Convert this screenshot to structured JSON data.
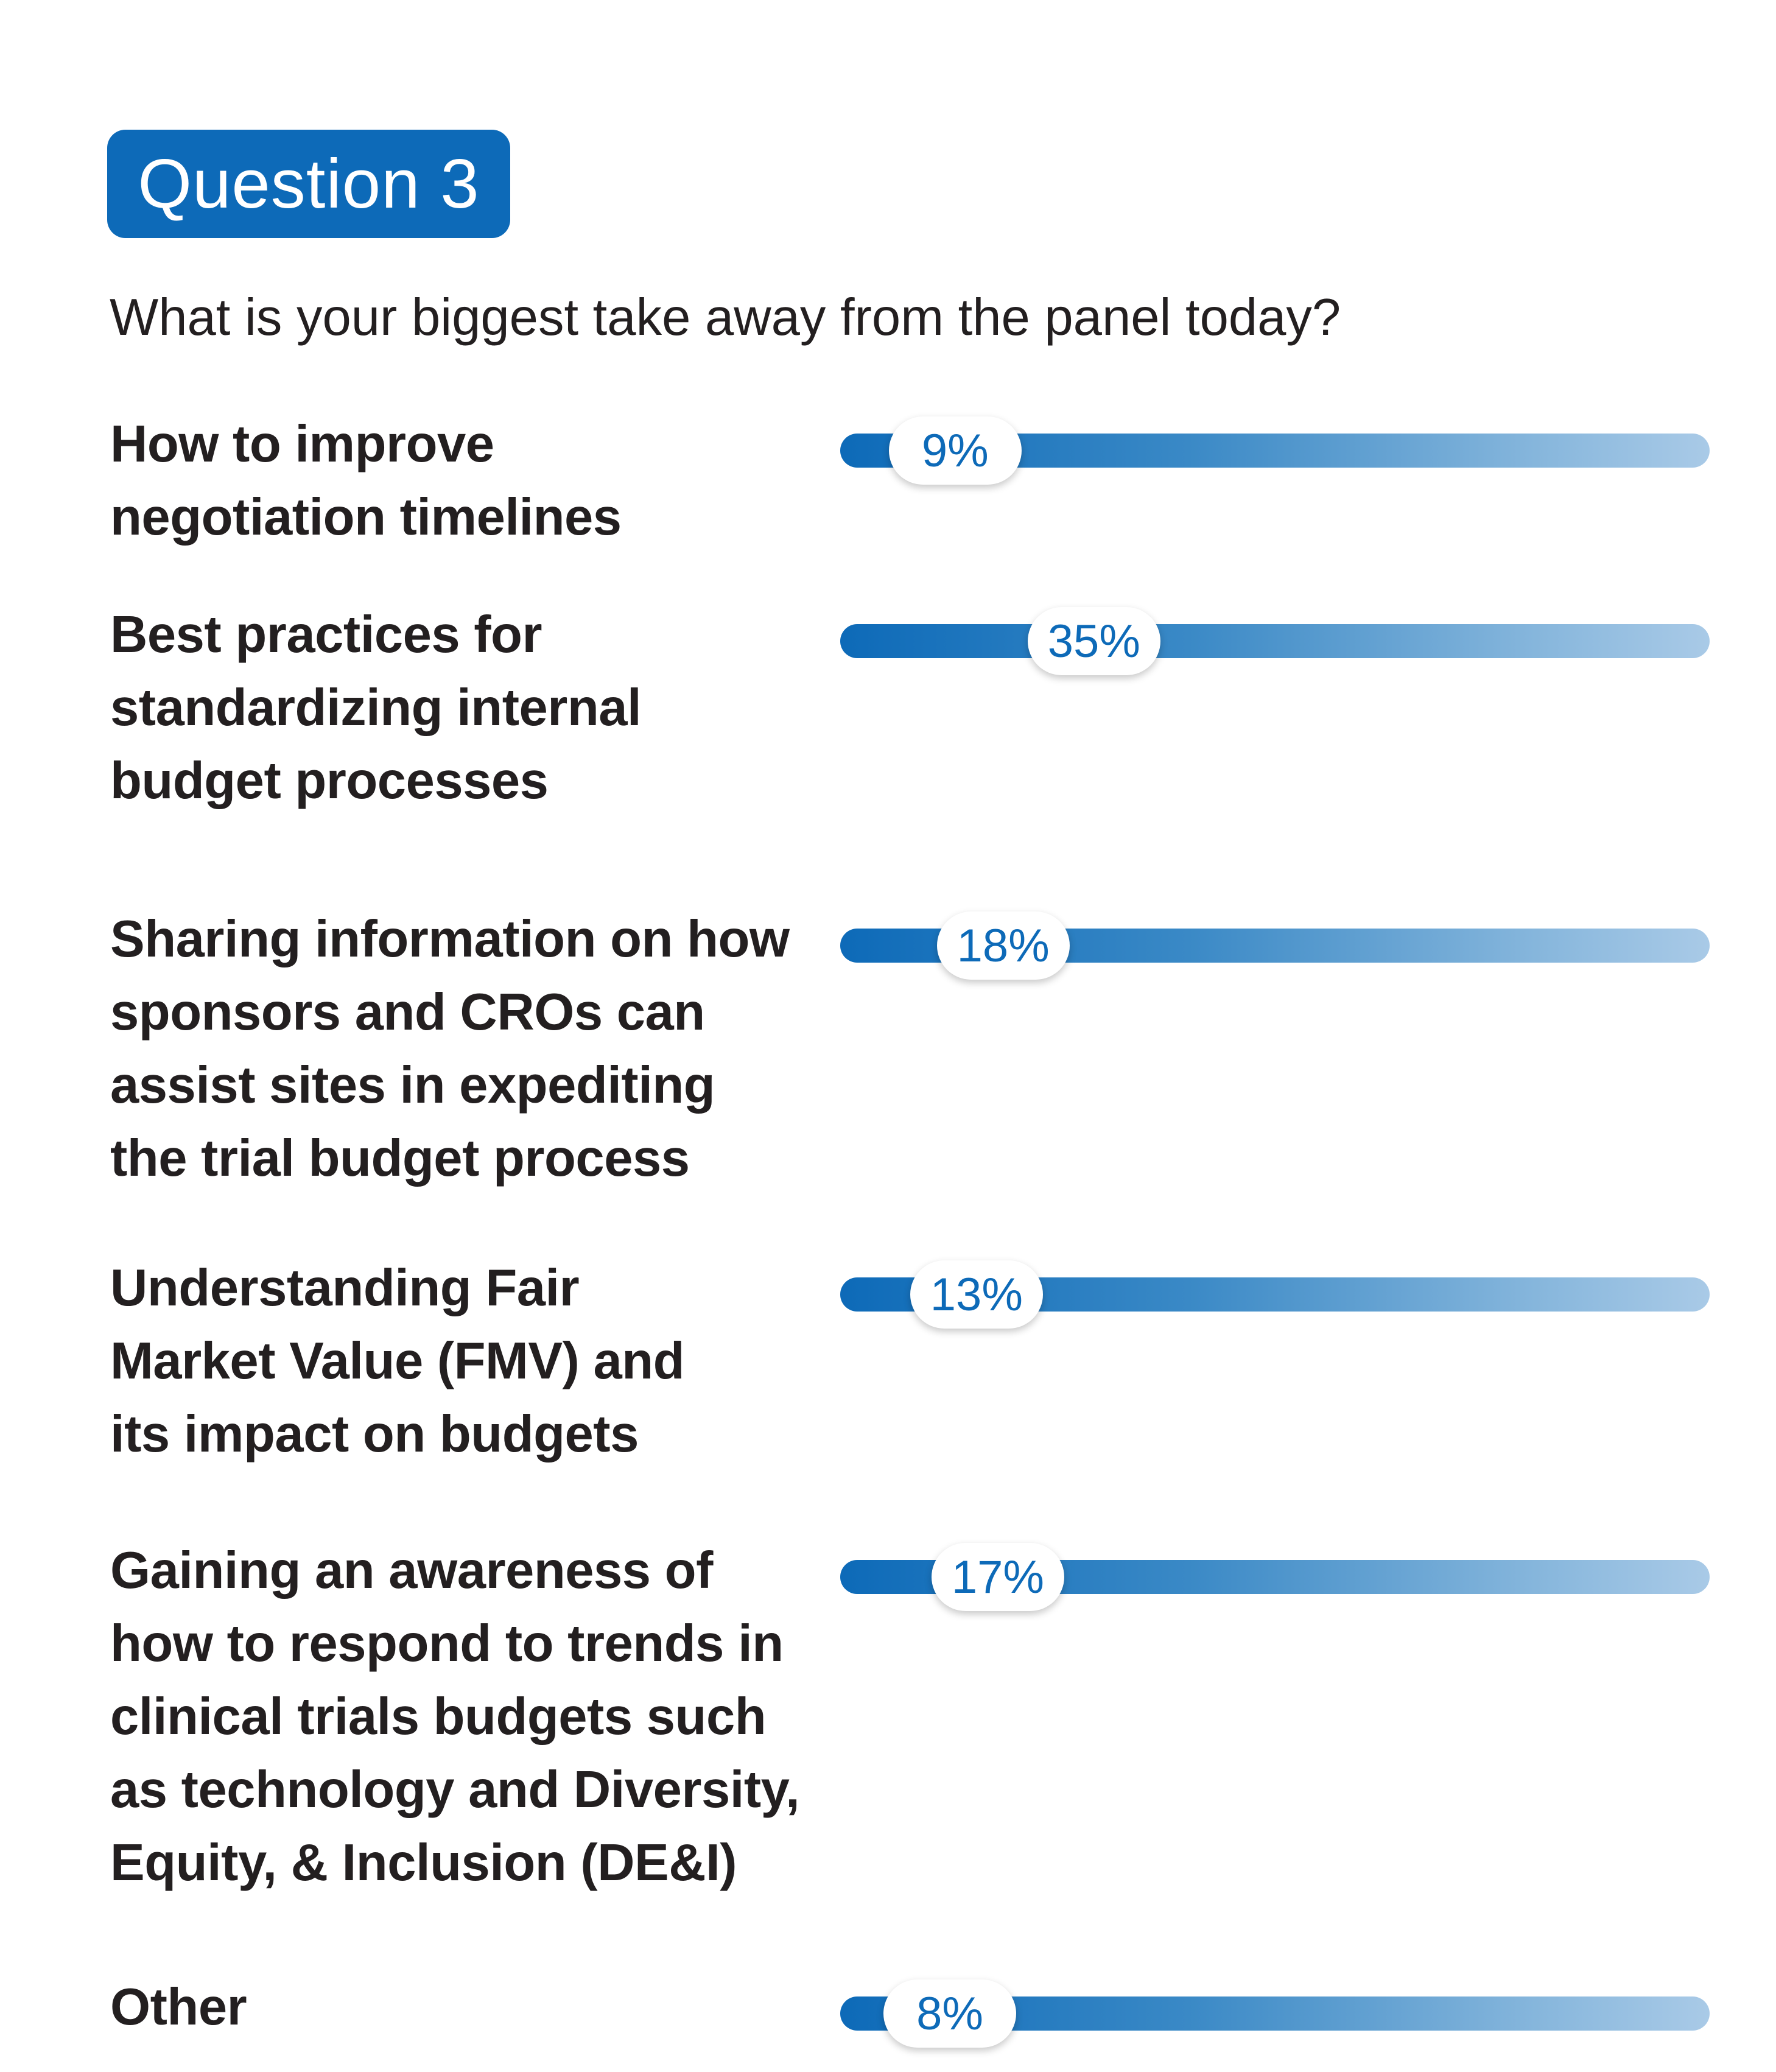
{
  "badge": "Question 3",
  "question": "What is your biggest take away from the panel today?",
  "chart_data": {
    "type": "bar",
    "orientation": "horizontal",
    "categories": [
      "How to improve negotiation timelines",
      "Best practices for standardizing internal budget processes",
      "Sharing information on how sponsors and CROs can assist sites in expediting the trial budget process",
      "Understanding Fair Market Value (FMV) and its impact on budgets",
      "Gaining an awareness of how to respond to trends in clinical trials budgets such as technology and Diversity, Equity, & Inclusion (DE&I)",
      "Other"
    ],
    "values": [
      9,
      35,
      18,
      13,
      17,
      8
    ],
    "value_labels": [
      "9%",
      "35%",
      "18%",
      "13%",
      "17%",
      "8%"
    ],
    "unit": "%",
    "xlim": [
      0,
      100
    ]
  },
  "rows": [
    {
      "lines": [
        "How to improve",
        "negotiation timelines"
      ]
    },
    {
      "lines": [
        "Best practices for",
        "standardizing internal",
        "budget processes"
      ]
    },
    {
      "lines": [
        "Sharing information on how",
        "sponsors and CROs can",
        "assist sites in expediting",
        "the trial budget process"
      ]
    },
    {
      "lines": [
        "Understanding Fair",
        "Market Value (FMV) and",
        "its impact on budgets"
      ]
    },
    {
      "lines": [
        "Gaining an awareness of",
        "how to respond to trends in",
        "clinical trials budgets such",
        "as technology and Diversity,",
        "Equity, & Inclusion (DE&I)"
      ]
    },
    {
      "lines": [
        "Other"
      ]
    }
  ],
  "colors": {
    "accent": "#0d6ab8",
    "text": "#231f20",
    "track_end": "#a9cae7"
  }
}
